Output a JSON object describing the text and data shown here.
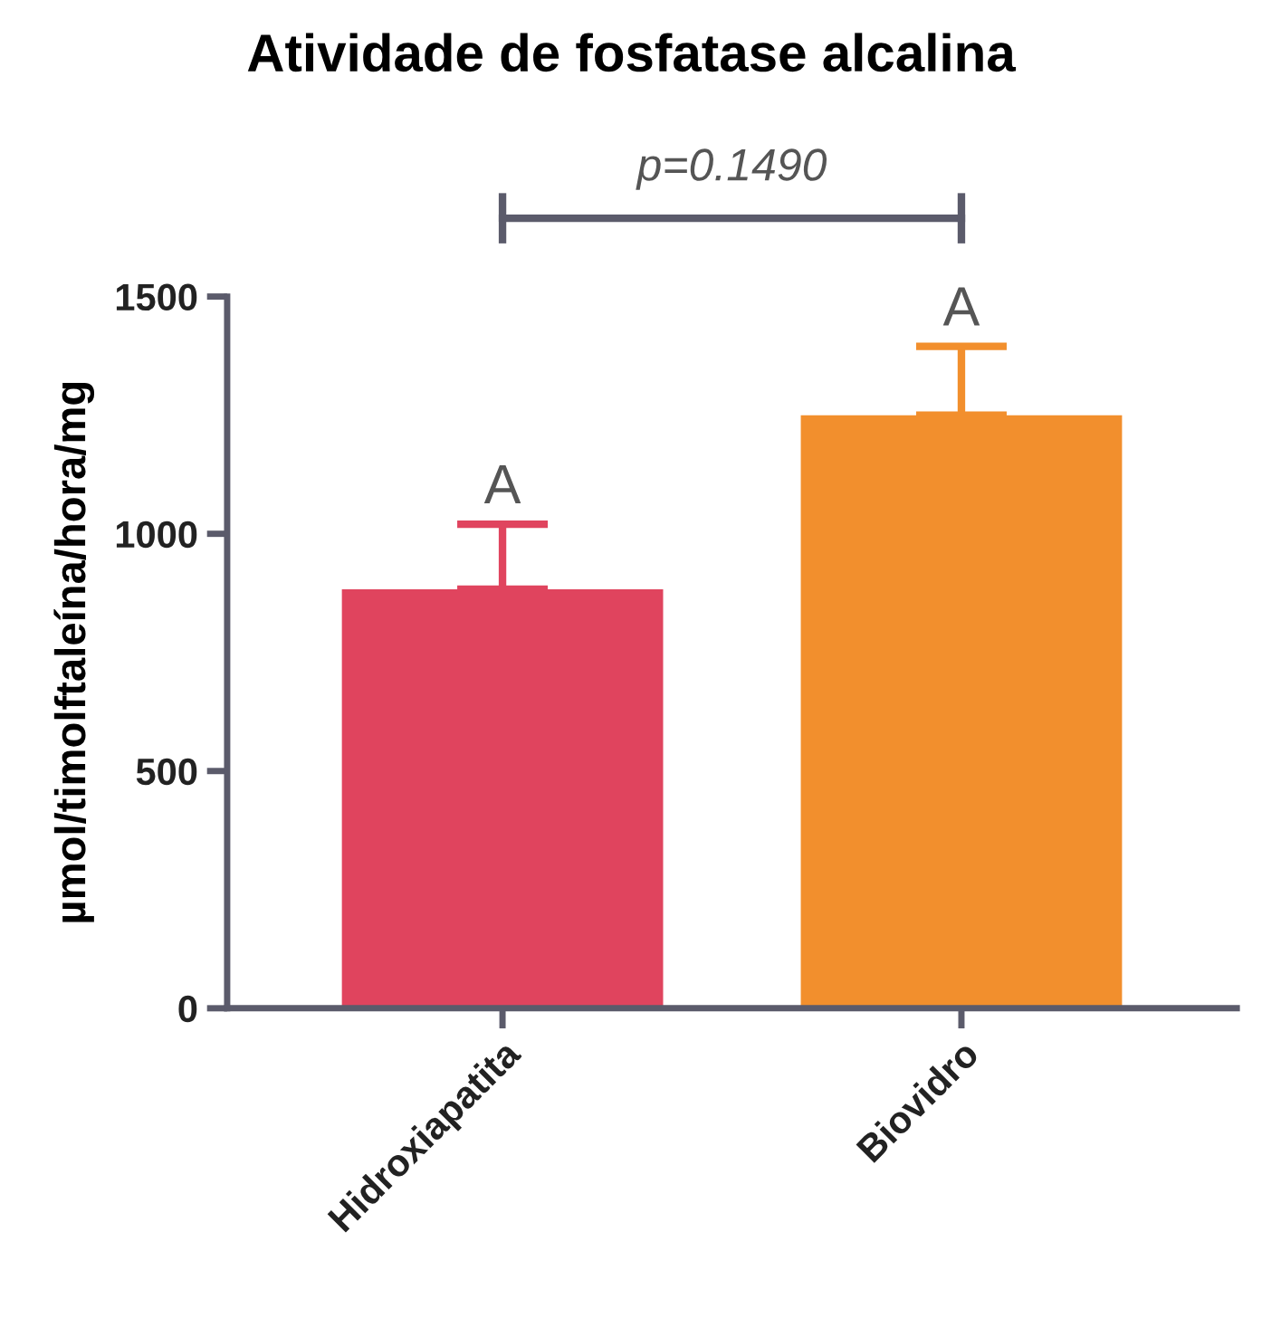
{
  "chart_data": {
    "type": "bar",
    "title": "Atividade de fosfatase alcalina",
    "ylabel": "µmol/timolftaleína/hora/mg",
    "categories": [
      "Hidroxiapatita",
      "Biovidro"
    ],
    "values": [
      883,
      1250
    ],
    "colors": [
      "#e0445e",
      "#f28f2d"
    ],
    "errors": [
      [
        883,
        1020
      ],
      [
        1250,
        1395
      ]
    ],
    "ylim": [
      0,
      1500
    ],
    "yticks": [
      0,
      500,
      1000,
      1500
    ],
    "grid": false,
    "annotations": [
      "A",
      "A",
      "p=0.1490"
    ]
  }
}
